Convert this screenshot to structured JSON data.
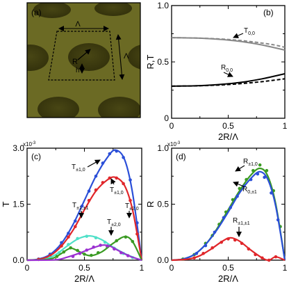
{
  "colors": {
    "blue": "#2b4fd8",
    "red": "#e0262a",
    "green": "#3a9a22",
    "purple": "#9a2fd0",
    "cyan": "#4fe0c8",
    "grey": "#888888",
    "black": "#000000",
    "photo_bg": "#6b6a24",
    "hole": "#3e3c10"
  },
  "panel_a": {
    "label": "(a)",
    "labels": {
      "lambda_top": "Λ",
      "lambda_side": "Λ",
      "radius": "R",
      "height": "h"
    },
    "image": "photo of periodic array of circular holes in a film, with dashed square unit cell annotation"
  },
  "chart_data": [
    {
      "id": "b",
      "type": "line",
      "panel_label": "(b)",
      "xlabel": "2R/Λ",
      "ylabel": "R,T",
      "xlim": [
        0,
        1
      ],
      "ylim": [
        0,
        1.0
      ],
      "xticks": [
        "0",
        "0.5",
        "1"
      ],
      "yticks": [
        "0",
        "0.5",
        "1.0"
      ],
      "x": [
        0,
        0.1,
        0.2,
        0.3,
        0.4,
        0.5,
        0.6,
        0.7,
        0.8,
        0.9,
        1.0
      ],
      "series": [
        {
          "name": "T0,0",
          "style": "solid",
          "color": "grey",
          "y": [
            0.715,
            0.714,
            0.712,
            0.708,
            0.702,
            0.694,
            0.683,
            0.668,
            0.65,
            0.628,
            0.605
          ]
        },
        {
          "name": "T0,0",
          "style": "dashed",
          "color": "grey",
          "y": [
            0.715,
            0.714,
            0.712,
            0.709,
            0.705,
            0.699,
            0.691,
            0.68,
            0.667,
            0.652,
            0.63
          ]
        },
        {
          "name": "R0,0",
          "style": "solid",
          "color": "black",
          "y": [
            0.285,
            0.286,
            0.288,
            0.292,
            0.298,
            0.306,
            0.317,
            0.332,
            0.35,
            0.372,
            0.395
          ]
        },
        {
          "name": "R0,0",
          "style": "dashed",
          "color": "black",
          "y": [
            0.285,
            0.286,
            0.287,
            0.29,
            0.294,
            0.299,
            0.306,
            0.315,
            0.325,
            0.337,
            0.35
          ]
        }
      ],
      "annotations": [
        {
          "base": "T",
          "sub": "0,0",
          "series": "T0,0"
        },
        {
          "base": "R",
          "sub": "0,0",
          "series": "R0,0"
        }
      ]
    },
    {
      "id": "c",
      "type": "line",
      "panel_label": "(c)",
      "xlabel": "2R/Λ",
      "ylabel": "T",
      "y_multiplier": "x10-3",
      "xlim": [
        0,
        1
      ],
      "ylim": [
        0,
        3.0
      ],
      "xticks": [
        "0",
        "0.5",
        "1"
      ],
      "yticks": [
        "0.0",
        "1.5",
        "3.0"
      ],
      "series": [
        {
          "name": "T±1,0",
          "color": "blue",
          "curve": [
            [
              0,
              0
            ],
            [
              0.1,
              0.03
            ],
            [
              0.2,
              0.15
            ],
            [
              0.3,
              0.45
            ],
            [
              0.4,
              0.95
            ],
            [
              0.5,
              1.6
            ],
            [
              0.6,
              2.25
            ],
            [
              0.7,
              2.75
            ],
            [
              0.77,
              2.95
            ],
            [
              0.85,
              2.7
            ],
            [
              0.92,
              1.8
            ],
            [
              1.0,
              0
            ]
          ],
          "points": [
            [
              0.1,
              0.03
            ],
            [
              0.2,
              0.16
            ],
            [
              0.3,
              0.47
            ],
            [
              0.36,
              0.72
            ],
            [
              0.42,
              1.05
            ],
            [
              0.48,
              1.45
            ],
            [
              0.54,
              1.85
            ],
            [
              0.6,
              2.25
            ],
            [
              0.66,
              2.6
            ],
            [
              0.72,
              2.85
            ],
            [
              0.78,
              2.92
            ],
            [
              0.84,
              2.75
            ],
            [
              0.9,
              2.15
            ],
            [
              0.96,
              1.0
            ]
          ]
        },
        {
          "name": "T±1,0",
          "color": "red",
          "curve": [
            [
              0,
              0
            ],
            [
              0.1,
              0.02
            ],
            [
              0.2,
              0.12
            ],
            [
              0.3,
              0.38
            ],
            [
              0.4,
              0.8
            ],
            [
              0.5,
              1.35
            ],
            [
              0.6,
              1.85
            ],
            [
              0.7,
              2.15
            ],
            [
              0.77,
              2.22
            ],
            [
              0.85,
              2.0
            ],
            [
              0.92,
              1.35
            ],
            [
              1.0,
              0
            ]
          ],
          "points": [
            [
              0.1,
              0.02
            ],
            [
              0.2,
              0.12
            ],
            [
              0.3,
              0.38
            ],
            [
              0.36,
              0.62
            ],
            [
              0.42,
              0.9
            ],
            [
              0.48,
              1.25
            ],
            [
              0.54,
              1.6
            ],
            [
              0.6,
              1.88
            ],
            [
              0.66,
              2.08
            ],
            [
              0.72,
              2.2
            ],
            [
              0.78,
              2.2
            ],
            [
              0.84,
              2.05
            ],
            [
              0.9,
              1.6
            ],
            [
              0.96,
              0.7
            ]
          ]
        },
        {
          "name": "T±1,±1",
          "color": "cyan",
          "curve": [
            [
              0,
              0
            ],
            [
              0.15,
              0.02
            ],
            [
              0.25,
              0.15
            ],
            [
              0.35,
              0.38
            ],
            [
              0.45,
              0.58
            ],
            [
              0.55,
              0.65
            ],
            [
              0.65,
              0.55
            ],
            [
              0.75,
              0.35
            ],
            [
              0.85,
              0.18
            ],
            [
              0.95,
              0.05
            ],
            [
              1.0,
              0
            ]
          ],
          "points": [
            [
              0.2,
              0.06
            ],
            [
              0.28,
              0.2
            ],
            [
              0.36,
              0.42
            ],
            [
              0.44,
              0.58
            ],
            [
              0.52,
              0.64
            ],
            [
              0.6,
              0.6
            ],
            [
              0.68,
              0.48
            ],
            [
              0.76,
              0.32
            ],
            [
              0.84,
              0.18
            ],
            [
              0.92,
              0.07
            ]
          ]
        },
        {
          "name": "T±2,0",
          "color": "green",
          "curve": [
            [
              0,
              0
            ],
            [
              0.2,
              0.03
            ],
            [
              0.3,
              0.18
            ],
            [
              0.38,
              0.32
            ],
            [
              0.46,
              0.22
            ],
            [
              0.55,
              0.12
            ],
            [
              0.65,
              0.22
            ],
            [
              0.75,
              0.45
            ],
            [
              0.85,
              0.63
            ],
            [
              0.92,
              0.5
            ],
            [
              1.0,
              0
            ]
          ],
          "points": [
            [
              0.26,
              0.1
            ],
            [
              0.32,
              0.22
            ],
            [
              0.38,
              0.33
            ],
            [
              0.44,
              0.26
            ],
            [
              0.5,
              0.16
            ],
            [
              0.56,
              0.13
            ],
            [
              0.62,
              0.2
            ],
            [
              0.7,
              0.36
            ],
            [
              0.78,
              0.52
            ],
            [
              0.86,
              0.62
            ],
            [
              0.92,
              0.5
            ]
          ]
        },
        {
          "name": "T±2,0",
          "color": "purple",
          "curve": [
            [
              0,
              0
            ],
            [
              0.25,
              0.01
            ],
            [
              0.35,
              0.08
            ],
            [
              0.45,
              0.18
            ],
            [
              0.55,
              0.3
            ],
            [
              0.65,
              0.4
            ],
            [
              0.72,
              0.38
            ],
            [
              0.8,
              0.25
            ],
            [
              0.9,
              0.1
            ],
            [
              1.0,
              0
            ]
          ],
          "points": [
            [
              0.4,
              0.1
            ],
            [
              0.46,
              0.18
            ],
            [
              0.52,
              0.27
            ],
            [
              0.58,
              0.35
            ],
            [
              0.64,
              0.4
            ],
            [
              0.7,
              0.38
            ],
            [
              0.76,
              0.3
            ],
            [
              0.82,
              0.2
            ],
            [
              0.88,
              0.12
            ]
          ]
        }
      ],
      "annotations": [
        {
          "base": "T",
          "sub": "±1,0",
          "series": "blue"
        },
        {
          "base": "T",
          "sub": "±1,0",
          "series": "red"
        },
        {
          "base": "T",
          "sub": "±1,±1",
          "series": "cyan"
        },
        {
          "base": "T",
          "sub": "±2,0",
          "series": "green"
        },
        {
          "base": "T",
          "sub": "±2,0",
          "series": "purple"
        }
      ]
    },
    {
      "id": "d",
      "type": "line",
      "panel_label": "(d)",
      "xlabel": "2R/Λ",
      "ylabel": "R",
      "y_multiplier": "x10-3",
      "xlim": [
        0,
        1
      ],
      "ylim": [
        0,
        1.0
      ],
      "xticks": [
        "0",
        "0.5",
        "1"
      ],
      "yticks": [
        "0.0",
        "0.5",
        "1.0"
      ],
      "series": [
        {
          "name": "R±1,0",
          "color": "green",
          "curve": [
            [
              0,
              0
            ],
            [
              0.1,
              0.01
            ],
            [
              0.2,
              0.05
            ],
            [
              0.3,
              0.14
            ],
            [
              0.4,
              0.28
            ],
            [
              0.5,
              0.45
            ],
            [
              0.6,
              0.62
            ],
            [
              0.7,
              0.76
            ],
            [
              0.78,
              0.82
            ],
            [
              0.85,
              0.75
            ],
            [
              0.92,
              0.5
            ],
            [
              1.0,
              0
            ]
          ],
          "points": [
            [
              0.1,
              0.01
            ],
            [
              0.2,
              0.05
            ],
            [
              0.3,
              0.15
            ],
            [
              0.36,
              0.22
            ],
            [
              0.42,
              0.32
            ],
            [
              0.48,
              0.43
            ],
            [
              0.54,
              0.54
            ],
            [
              0.6,
              0.64
            ],
            [
              0.66,
              0.72
            ],
            [
              0.72,
              0.8
            ],
            [
              0.78,
              0.85
            ],
            [
              0.84,
              0.8
            ],
            [
              0.9,
              0.62
            ],
            [
              0.96,
              0.3
            ]
          ]
        },
        {
          "name": "R0,±1",
          "color": "blue",
          "curve": [
            [
              0,
              0
            ],
            [
              0.1,
              0.01
            ],
            [
              0.2,
              0.05
            ],
            [
              0.3,
              0.14
            ],
            [
              0.4,
              0.27
            ],
            [
              0.5,
              0.43
            ],
            [
              0.6,
              0.6
            ],
            [
              0.7,
              0.73
            ],
            [
              0.78,
              0.79
            ],
            [
              0.85,
              0.72
            ],
            [
              0.92,
              0.48
            ],
            [
              1.0,
              0
            ]
          ],
          "points": [
            [
              0.22,
              0.06
            ],
            [
              0.3,
              0.13
            ],
            [
              0.38,
              0.25
            ],
            [
              0.46,
              0.38
            ],
            [
              0.52,
              0.47
            ],
            [
              0.58,
              0.57
            ],
            [
              0.64,
              0.66
            ],
            [
              0.7,
              0.72
            ],
            [
              0.76,
              0.77
            ],
            [
              0.82,
              0.74
            ],
            [
              0.88,
              0.6
            ],
            [
              0.94,
              0.36
            ]
          ]
        },
        {
          "name": "R±1,±1",
          "color": "red",
          "curve": [
            [
              0,
              0
            ],
            [
              0.15,
              0.01
            ],
            [
              0.25,
              0.04
            ],
            [
              0.35,
              0.1
            ],
            [
              0.45,
              0.17
            ],
            [
              0.52,
              0.2
            ],
            [
              0.6,
              0.17
            ],
            [
              0.7,
              0.09
            ],
            [
              0.8,
              0.02
            ],
            [
              0.86,
              0.0
            ],
            [
              0.92,
              0.03
            ],
            [
              1.0,
              0
            ]
          ],
          "points": [
            [
              0.2,
              0.02
            ],
            [
              0.28,
              0.06
            ],
            [
              0.36,
              0.11
            ],
            [
              0.44,
              0.16
            ],
            [
              0.5,
              0.19
            ],
            [
              0.56,
              0.18
            ],
            [
              0.62,
              0.15
            ],
            [
              0.68,
              0.1
            ],
            [
              0.74,
              0.05
            ],
            [
              0.8,
              0.02
            ],
            [
              0.86,
              0.0
            ],
            [
              0.92,
              0.03
            ]
          ]
        }
      ],
      "annotations": [
        {
          "base": "R",
          "sub": "±1,0",
          "series": "green"
        },
        {
          "base": "R",
          "sub": "0,±1",
          "series": "blue"
        },
        {
          "base": "R",
          "sub": "±1,±1",
          "series": "red"
        }
      ]
    }
  ]
}
